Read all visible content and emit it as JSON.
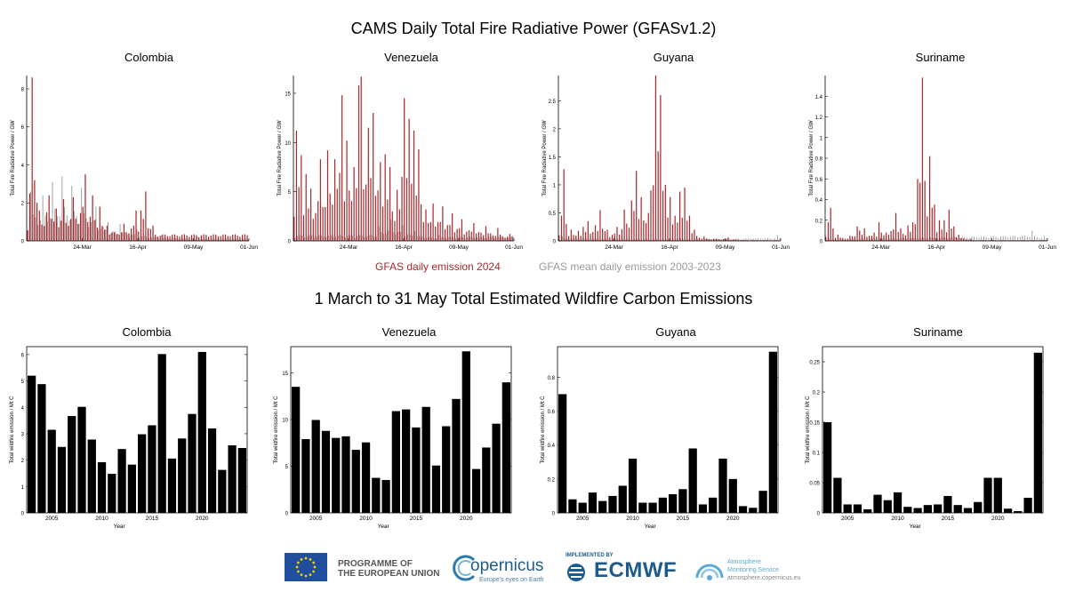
{
  "titles": {
    "top": "CAMS Daily Total Fire Radiative Power (GFASv1.2)",
    "bottom": "1 March to 31 May Total Estimated Wildfire Carbon Emissions"
  },
  "legend": {
    "emission_2024": "GFAS daily emission 2024",
    "mean": "GFAS mean daily emission 2003-2023",
    "color_2024": "#a8282b",
    "color_mean": "#a0a0a0"
  },
  "footer": {
    "eu_line1": "PROGRAMME OF",
    "eu_line2": "THE EUROPEAN UNION",
    "copernicus": "opernicus",
    "copernicus_tagline": "Europe's eyes on Earth",
    "implemented_by": "IMPLEMENTED BY",
    "ecmwf": "ECMWF",
    "cams_line1": "Atmosphere",
    "cams_line2": "Monitoring Service",
    "cams_url": "atmosphere.copernicus.eu"
  },
  "chart_data": [
    {
      "type": "bar",
      "title": "Colombia",
      "ylabel": "Total Fire Radiative Power / GW",
      "xticks": [
        "24-Mar",
        "16-Apr",
        "09-May",
        "01-Jun"
      ],
      "ylim": [
        0,
        8.7
      ],
      "yticks": [
        0,
        2,
        4,
        6,
        8
      ],
      "series": [
        {
          "name": "GFAS daily emission 2024",
          "peaks": [
            [
              1,
              2.5
            ],
            [
              2,
              8.6
            ],
            [
              3,
              3.2
            ],
            [
              4,
              2.0
            ],
            [
              5,
              1.6
            ],
            [
              8,
              1.5
            ],
            [
              9,
              2.4
            ],
            [
              12,
              1.7
            ],
            [
              15,
              2.2
            ],
            [
              19,
              2.3
            ],
            [
              24,
              3.5
            ],
            [
              27,
              2.4
            ],
            [
              30,
              1.8
            ],
            [
              33,
              0.8
            ],
            [
              40,
              0.9
            ],
            [
              45,
              1.6
            ],
            [
              47,
              1.6
            ],
            [
              49,
              2.6
            ],
            [
              52,
              0.8
            ]
          ],
          "decay_end": 0.05
        },
        {
          "name": "GFAS mean daily emission 2003-2023",
          "peaks": [
            [
              1,
              2.6
            ],
            [
              6,
              2.4
            ],
            [
              10,
              3.1
            ],
            [
              14,
              3.4
            ],
            [
              18,
              2.9
            ],
            [
              22,
              2.8
            ],
            [
              28,
              1.8
            ],
            [
              33,
              1.0
            ],
            [
              38,
              0.9
            ],
            [
              45,
              0.6
            ],
            [
              55,
              0.3
            ],
            [
              70,
              0.2
            ]
          ],
          "decay_end": 0.05
        }
      ]
    },
    {
      "type": "bar",
      "title": "Venezuela",
      "ylabel": "Total Fire Radiative Power / GW",
      "xticks": [
        "24-Mar",
        "16-Apr",
        "09-May",
        "01-Jun"
      ],
      "ylim": [
        0,
        16.8
      ],
      "yticks": [
        0,
        5,
        10,
        15
      ],
      "series": [
        {
          "name": "GFAS daily emission 2024",
          "peaks": [
            [
              1,
              11.2
            ],
            [
              3,
              8.7
            ],
            [
              5,
              6.8
            ],
            [
              7,
              5.3
            ],
            [
              11,
              8.3
            ],
            [
              14,
              9.2
            ],
            [
              17,
              8.3
            ],
            [
              20,
              14.8
            ],
            [
              22,
              10.2
            ],
            [
              25,
              7.5
            ],
            [
              27,
              15.8
            ],
            [
              28,
              16.7
            ],
            [
              31,
              11.5
            ],
            [
              33,
              13.0
            ],
            [
              36,
              8.0
            ],
            [
              38,
              8.8
            ],
            [
              40,
              7.5
            ],
            [
              43,
              5.2
            ],
            [
              45,
              6.5
            ],
            [
              46,
              14.5
            ],
            [
              48,
              12.4
            ],
            [
              50,
              11.2
            ],
            [
              52,
              9.3
            ],
            [
              55,
              3.2
            ],
            [
              58,
              3.8
            ],
            [
              62,
              3.5
            ],
            [
              66,
              2.8
            ],
            [
              70,
              2.2
            ],
            [
              75,
              1.8
            ],
            [
              80,
              1.5
            ],
            [
              85,
              1.3
            ],
            [
              90,
              0.7
            ]
          ],
          "decay_end": 0.5
        },
        {
          "name": "GFAS mean daily emission 2003-2023",
          "peaks": [
            [
              35,
              1.5
            ],
            [
              40,
              2.2
            ],
            [
              45,
              1.6
            ],
            [
              50,
              1.0
            ],
            [
              60,
              0.6
            ]
          ],
          "decay_end": 0.3
        }
      ]
    },
    {
      "type": "bar",
      "title": "Guyana",
      "ylabel": "Total Fire Radiative Power / GW",
      "xticks": [
        "24-Mar",
        "16-Apr",
        "09-May",
        "01-Jun"
      ],
      "ylim": [
        0,
        2.95
      ],
      "yticks": [
        0,
        0.5,
        1.0,
        1.5,
        2.0,
        2.5
      ],
      "series": [
        {
          "name": "GFAS daily emission 2024",
          "peaks": [
            [
              1,
              0.45
            ],
            [
              2,
              1.28
            ],
            [
              3,
              0.3
            ],
            [
              5,
              0.2
            ],
            [
              8,
              0.18
            ],
            [
              10,
              0.25
            ],
            [
              12,
              0.35
            ],
            [
              15,
              0.28
            ],
            [
              17,
              0.55
            ],
            [
              20,
              0.2
            ],
            [
              24,
              0.25
            ],
            [
              27,
              0.56
            ],
            [
              30,
              0.72
            ],
            [
              32,
              1.25
            ],
            [
              34,
              0.78
            ],
            [
              37,
              0.5
            ],
            [
              38,
              0.9
            ],
            [
              40,
              2.95
            ],
            [
              41,
              1.6
            ],
            [
              42,
              2.6
            ],
            [
              44,
              1.0
            ],
            [
              46,
              0.78
            ],
            [
              48,
              0.45
            ],
            [
              50,
              0.88
            ],
            [
              52,
              0.95
            ],
            [
              54,
              0.45
            ],
            [
              56,
              0.2
            ],
            [
              60,
              0.08
            ],
            [
              70,
              0.06
            ],
            [
              80,
              0.02
            ]
          ],
          "decay_end": 0.01
        },
        {
          "name": "GFAS mean daily emission 2003-2023",
          "peaks": [
            [
              1,
              0.08
            ],
            [
              50,
              0.05
            ],
            [
              90,
              0.1
            ]
          ],
          "decay_end": 0.03
        }
      ]
    },
    {
      "type": "bar",
      "title": "Suriname",
      "ylabel": "Total Fire Radiative Power / GW",
      "xticks": [
        "24-Mar",
        "16-Apr",
        "09-May",
        "01-Jun"
      ],
      "ylim": [
        0,
        1.6
      ],
      "yticks": [
        0,
        0.2,
        0.4,
        0.6,
        0.8,
        1.0,
        1.2,
        1.4
      ],
      "series": [
        {
          "name": "GFAS daily emission 2024",
          "peaks": [
            [
              1,
              0.18
            ],
            [
              2,
              0.32
            ],
            [
              3,
              0.12
            ],
            [
              5,
              0.06
            ],
            [
              10,
              0.05
            ],
            [
              13,
              0.14
            ],
            [
              14,
              0.1
            ],
            [
              16,
              0.12
            ],
            [
              20,
              0.08
            ],
            [
              22,
              0.18
            ],
            [
              25,
              0.08
            ],
            [
              29,
              0.27
            ],
            [
              31,
              0.12
            ],
            [
              34,
              0.15
            ],
            [
              36,
              0.18
            ],
            [
              38,
              0.6
            ],
            [
              40,
              1.58
            ],
            [
              41,
              0.58
            ],
            [
              43,
              0.82
            ],
            [
              45,
              0.35
            ],
            [
              47,
              0.2
            ],
            [
              49,
              0.2
            ],
            [
              51,
              0.3
            ],
            [
              53,
              0.14
            ],
            [
              55,
              0.06
            ],
            [
              60,
              0.02
            ]
          ],
          "decay_end": 0.0
        },
        {
          "name": "GFAS mean daily emission 2003-2023",
          "peaks": [
            [
              1,
              0.02
            ],
            [
              85,
              0.1
            ],
            [
              90,
              0.05
            ]
          ],
          "decay_end": 0.02
        }
      ]
    },
    {
      "type": "bar",
      "title": "Colombia",
      "xlabel": "Year",
      "ylabel": "Total wildfire emission / Mt C",
      "x": [
        2003,
        2004,
        2005,
        2006,
        2007,
        2008,
        2009,
        2010,
        2011,
        2012,
        2013,
        2014,
        2015,
        2016,
        2017,
        2018,
        2019,
        2020,
        2021,
        2022,
        2023,
        2024
      ],
      "values": [
        5.2,
        4.88,
        3.15,
        2.5,
        3.67,
        4.02,
        2.78,
        1.92,
        1.48,
        2.42,
        1.83,
        2.98,
        3.32,
        6.02,
        2.06,
        2.82,
        3.75,
        6.1,
        3.2,
        1.63,
        2.56,
        2.46
      ],
      "ylim": [
        0,
        6.3
      ],
      "yticks": [
        0,
        1,
        2,
        3,
        4,
        5,
        6
      ],
      "xticks": [
        2005,
        2010,
        2015,
        2020
      ]
    },
    {
      "type": "bar",
      "title": "Venezuela",
      "xlabel": "Year",
      "ylabel": "Total wildfire emission / Mt C",
      "x": [
        2003,
        2004,
        2005,
        2006,
        2007,
        2008,
        2009,
        2010,
        2011,
        2012,
        2013,
        2014,
        2015,
        2016,
        2017,
        2018,
        2019,
        2020,
        2021,
        2022,
        2023,
        2024
      ],
      "values": [
        13.5,
        7.9,
        9.95,
        8.78,
        8.03,
        8.2,
        6.75,
        7.55,
        3.75,
        3.52,
        10.9,
        11.08,
        9.15,
        11.35,
        5.07,
        9.28,
        12.2,
        17.3,
        4.7,
        7.0,
        9.55,
        13.98
      ],
      "ylim": [
        0,
        17.8
      ],
      "yticks": [
        0,
        5,
        10,
        15
      ],
      "xticks": [
        2005,
        2010,
        2015,
        2020
      ]
    },
    {
      "type": "bar",
      "title": "Guyana",
      "xlabel": "Year",
      "ylabel": "Total wildfire emission / Mt C",
      "x": [
        2003,
        2004,
        2005,
        2006,
        2007,
        2008,
        2009,
        2010,
        2011,
        2012,
        2013,
        2014,
        2015,
        2016,
        2017,
        2018,
        2019,
        2020,
        2021,
        2022,
        2023,
        2024
      ],
      "values": [
        0.7,
        0.08,
        0.06,
        0.12,
        0.07,
        0.1,
        0.16,
        0.32,
        0.06,
        0.06,
        0.09,
        0.11,
        0.14,
        0.38,
        0.05,
        0.09,
        0.32,
        0.2,
        0.04,
        0.03,
        0.13,
        0.95
      ],
      "ylim": [
        0,
        0.98
      ],
      "yticks": [
        0,
        0.2,
        0.4,
        0.6,
        0.8
      ],
      "xticks": [
        2005,
        2010,
        2015,
        2020
      ]
    },
    {
      "type": "bar",
      "title": "Suriname",
      "xlabel": "Year",
      "ylabel": "Total wildfire emission / Mt C",
      "x": [
        2003,
        2004,
        2005,
        2006,
        2007,
        2008,
        2009,
        2010,
        2011,
        2012,
        2013,
        2014,
        2015,
        2016,
        2017,
        2018,
        2019,
        2020,
        2021,
        2022,
        2023,
        2024
      ],
      "values": [
        0.15,
        0.058,
        0.014,
        0.014,
        0.006,
        0.03,
        0.021,
        0.034,
        0.01,
        0.008,
        0.013,
        0.014,
        0.028,
        0.013,
        0.008,
        0.018,
        0.058,
        0.058,
        0.007,
        0.003,
        0.025,
        0.265
      ],
      "ylim": [
        0,
        0.275
      ],
      "yticks": [
        0,
        0.05,
        0.1,
        0.15,
        0.2,
        0.25
      ],
      "xticks": [
        2005,
        2010,
        2015,
        2020
      ]
    }
  ]
}
